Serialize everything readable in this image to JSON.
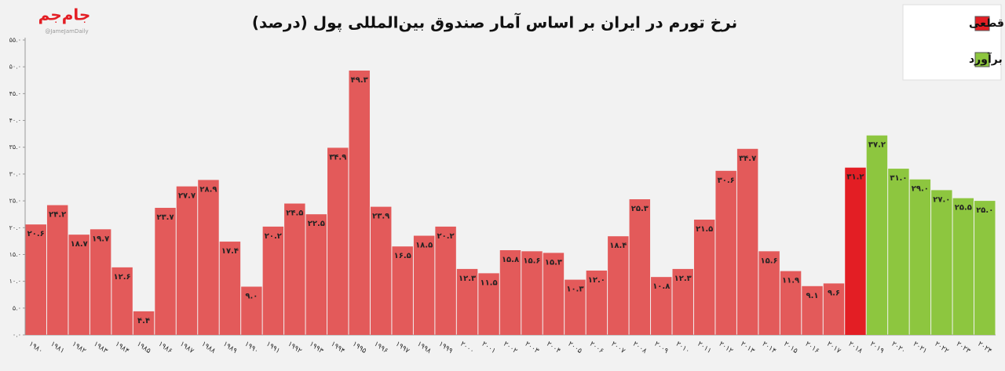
{
  "logo": {
    "text": "جام‌جم",
    "subtitle": "@JameJamDaily"
  },
  "chart_data": {
    "type": "bar",
    "title": "نرخ تورم در ایران بر اساس آمار صندوق بین‌المللی پول (درصد)",
    "categories": [
      "۱۹۸۰",
      "۱۹۸۱",
      "۱۹۸۲",
      "۱۹۸۳",
      "۱۹۸۴",
      "۱۹۸۵",
      "۱۹۸۶",
      "۱۹۸۷",
      "۱۹۸۸",
      "۱۹۸۹",
      "۱۹۹۰",
      "۱۹۹۱",
      "۱۹۹۲",
      "۱۹۹۳",
      "۱۹۹۴",
      "۱۹۹۵",
      "۱۹۹۶",
      "۱۹۹۷",
      "۱۹۹۸",
      "۱۹۹۹",
      "۲۰۰۰",
      "۲۰۰۱",
      "۲۰۰۲",
      "۲۰۰۳",
      "۲۰۰۴",
      "۲۰۰۵",
      "۲۰۰۶",
      "۲۰۰۷",
      "۲۰۰۸",
      "۲۰۰۹",
      "۲۰۱۰",
      "۲۰۱۱",
      "۲۰۱۲",
      "۲۰۱۳",
      "۲۰۱۴",
      "۲۰۱۵",
      "۲۰۱۶",
      "۲۰۱۷",
      "۲۰۱۸",
      "۲۰۱۹",
      "۲۰۲۰",
      "۲۰۲۱",
      "۲۰۲۲",
      "۲۰۲۳",
      "۲۰۲۴"
    ],
    "series": [
      {
        "name": "ارقام قطعی",
        "color": "#e31e24",
        "values": [
          20.6,
          24.2,
          18.7,
          19.7,
          12.6,
          4.4,
          23.7,
          27.7,
          28.9,
          17.4,
          9.0,
          20.2,
          24.5,
          22.5,
          34.9,
          49.3,
          23.9,
          16.5,
          18.5,
          20.2,
          12.3,
          11.5,
          15.8,
          15.6,
          15.3,
          10.3,
          12.0,
          18.4,
          25.3,
          10.8,
          12.3,
          21.5,
          30.6,
          34.7,
          15.6,
          11.9,
          9.1,
          9.6,
          31.2,
          null,
          null,
          null,
          null,
          null,
          null
        ],
        "value_labels": [
          "۲۰.۶",
          "۲۴.۲",
          "۱۸.۷",
          "۱۹.۷",
          "۱۲.۶",
          "۴.۴",
          "۲۳.۷",
          "۲۷.۷",
          "۲۸.۹",
          "۱۷.۴",
          "۹.۰",
          "۲۰.۲",
          "۲۴.۵",
          "۲۲.۵",
          "۳۴.۹",
          "۴۹.۳",
          "۲۳.۹",
          "۱۶.۵",
          "۱۸.۵",
          "۲۰.۲",
          "۱۲.۳",
          "۱۱.۵",
          "۱۵.۸",
          "۱۵.۶",
          "۱۵.۳",
          "۱۰.۳",
          "۱۲.۰",
          "۱۸.۴",
          "۲۵.۳",
          "۱۰.۸",
          "۱۲.۳",
          "۲۱.۵",
          "۳۰.۶",
          "۳۴.۷",
          "۱۵.۶",
          "۱۱.۹",
          "۹.۱",
          "۹.۶",
          "۳۱.۲",
          null,
          null,
          null,
          null,
          null,
          null
        ]
      },
      {
        "name": "ارقام برآورد",
        "color": "#8dc63f",
        "values": [
          null,
          null,
          null,
          null,
          null,
          null,
          null,
          null,
          null,
          null,
          null,
          null,
          null,
          null,
          null,
          null,
          null,
          null,
          null,
          null,
          null,
          null,
          null,
          null,
          null,
          null,
          null,
          null,
          null,
          null,
          null,
          null,
          null,
          null,
          null,
          null,
          null,
          null,
          null,
          37.2,
          31.0,
          29.0,
          27.0,
          25.5,
          25.0
        ],
        "value_labels": [
          null,
          null,
          null,
          null,
          null,
          null,
          null,
          null,
          null,
          null,
          null,
          null,
          null,
          null,
          null,
          null,
          null,
          null,
          null,
          null,
          null,
          null,
          null,
          null,
          null,
          null,
          null,
          null,
          null,
          null,
          null,
          null,
          null,
          null,
          null,
          null,
          null,
          null,
          null,
          "۳۷.۲",
          "۳۱.۰",
          "۲۹.۰",
          "۲۷.۰",
          "۲۵.۵",
          "۲۵.۰"
        ]
      }
    ],
    "history_color": "#e35a5a",
    "ylim": [
      0,
      55
    ],
    "yticks": [
      {
        "value": 0,
        "label": "۰.۰"
      },
      {
        "value": 5,
        "label": "۵.۰"
      },
      {
        "value": 10,
        "label": "۱۰.۰"
      },
      {
        "value": 15,
        "label": "۱۵.۰"
      },
      {
        "value": 20,
        "label": "۲۰.۰"
      },
      {
        "value": 25,
        "label": "۲۵.۰"
      },
      {
        "value": 30,
        "label": "۳۰.۰"
      },
      {
        "value": 35,
        "label": "۳۵.۰"
      },
      {
        "value": 40,
        "label": "۴۰.۰"
      },
      {
        "value": 45,
        "label": "۴۵.۰"
      },
      {
        "value": 50,
        "label": "۵۰.۰"
      },
      {
        "value": 55,
        "label": "۵۵.۰"
      }
    ],
    "grid": false,
    "legend": "top-right"
  }
}
